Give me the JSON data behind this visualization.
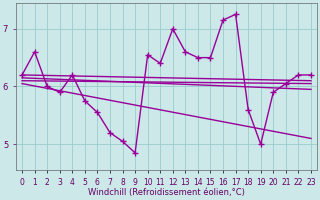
{
  "x": [
    0,
    1,
    2,
    3,
    4,
    5,
    6,
    7,
    8,
    9,
    10,
    11,
    12,
    13,
    14,
    15,
    16,
    17,
    18,
    19,
    20,
    21,
    22,
    23
  ],
  "y_main": [
    6.2,
    6.6,
    6.0,
    5.9,
    6.2,
    5.75,
    5.55,
    5.2,
    5.05,
    4.85,
    6.55,
    6.4,
    7.0,
    6.6,
    6.5,
    6.5,
    7.15,
    7.25,
    5.6,
    5.0,
    5.9,
    6.05,
    6.2,
    6.2
  ],
  "trend_lines": [
    {
      "x": [
        0,
        23
      ],
      "y": [
        6.2,
        6.1
      ]
    },
    {
      "x": [
        0,
        23
      ],
      "y": [
        6.15,
        5.95
      ]
    },
    {
      "x": [
        0,
        23
      ],
      "y": [
        6.05,
        5.1
      ]
    },
    {
      "x": [
        0,
        23
      ],
      "y": [
        6.1,
        6.05
      ]
    }
  ],
  "background_color": "#cce8e8",
  "grid_color": "#99cccc",
  "line_color": "#990099",
  "line_width": 1.0,
  "marker": "+",
  "marker_size": 4,
  "marker_edge_width": 1.0,
  "xlabel": "Windchill (Refroidissement éolien,°C)",
  "xlim": [
    -0.5,
    23.5
  ],
  "ylim": [
    4.55,
    7.45
  ],
  "yticks": [
    5,
    6,
    7
  ],
  "xtick_labels": [
    "0",
    "1",
    "2",
    "3",
    "4",
    "5",
    "6",
    "7",
    "8",
    "9",
    "10",
    "11",
    "12",
    "13",
    "14",
    "15",
    "16",
    "17",
    "18",
    "19",
    "20",
    "21",
    "22",
    "23"
  ],
  "tick_font_size": 5.5,
  "xlabel_font_size": 6,
  "font_color": "#660066",
  "spine_color": "#666666"
}
